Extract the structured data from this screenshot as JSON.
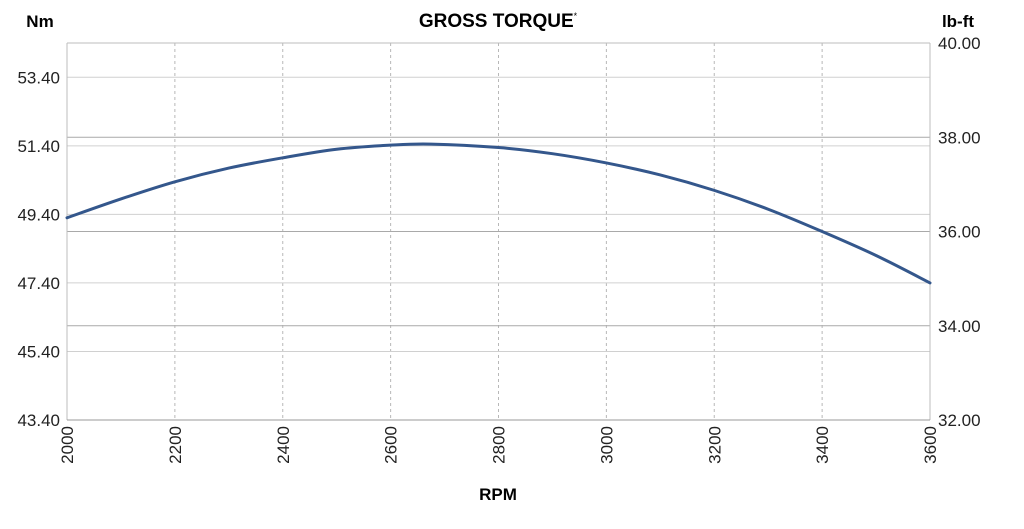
{
  "chart_data": {
    "type": "line",
    "title": "GROSS TORQUE",
    "title_superscript": "*",
    "xlabel": "RPM",
    "ylabel_left": "Nm",
    "ylabel_right": "lb-ft",
    "xlim": [
      2000,
      3600
    ],
    "x_ticks": [
      "2000",
      "2200",
      "2400",
      "2600",
      "2800",
      "3000",
      "3200",
      "3400",
      "3600"
    ],
    "y_left_lim": [
      43.4,
      54.4
    ],
    "y_left_ticks": [
      "53.40",
      "51.40",
      "49.40",
      "47.40",
      "45.40",
      "43.40"
    ],
    "y_right_lim": [
      32.0,
      40.0
    ],
    "y_right_ticks": [
      "40.00",
      "38.00",
      "36.00",
      "34.00",
      "32.00"
    ],
    "grid": true,
    "line_color": "#34578c",
    "series": [
      {
        "x": [
          2000,
          2100,
          2200,
          2300,
          2400,
          2500,
          2600,
          2675,
          2800,
          2900,
          3000,
          3100,
          3200,
          3300,
          3400,
          3500,
          3600
        ],
        "y": [
          49.3,
          49.85,
          50.35,
          50.75,
          51.05,
          51.3,
          51.42,
          51.45,
          51.35,
          51.17,
          50.9,
          50.55,
          50.1,
          49.55,
          48.9,
          48.2,
          47.4
        ]
      }
    ]
  }
}
